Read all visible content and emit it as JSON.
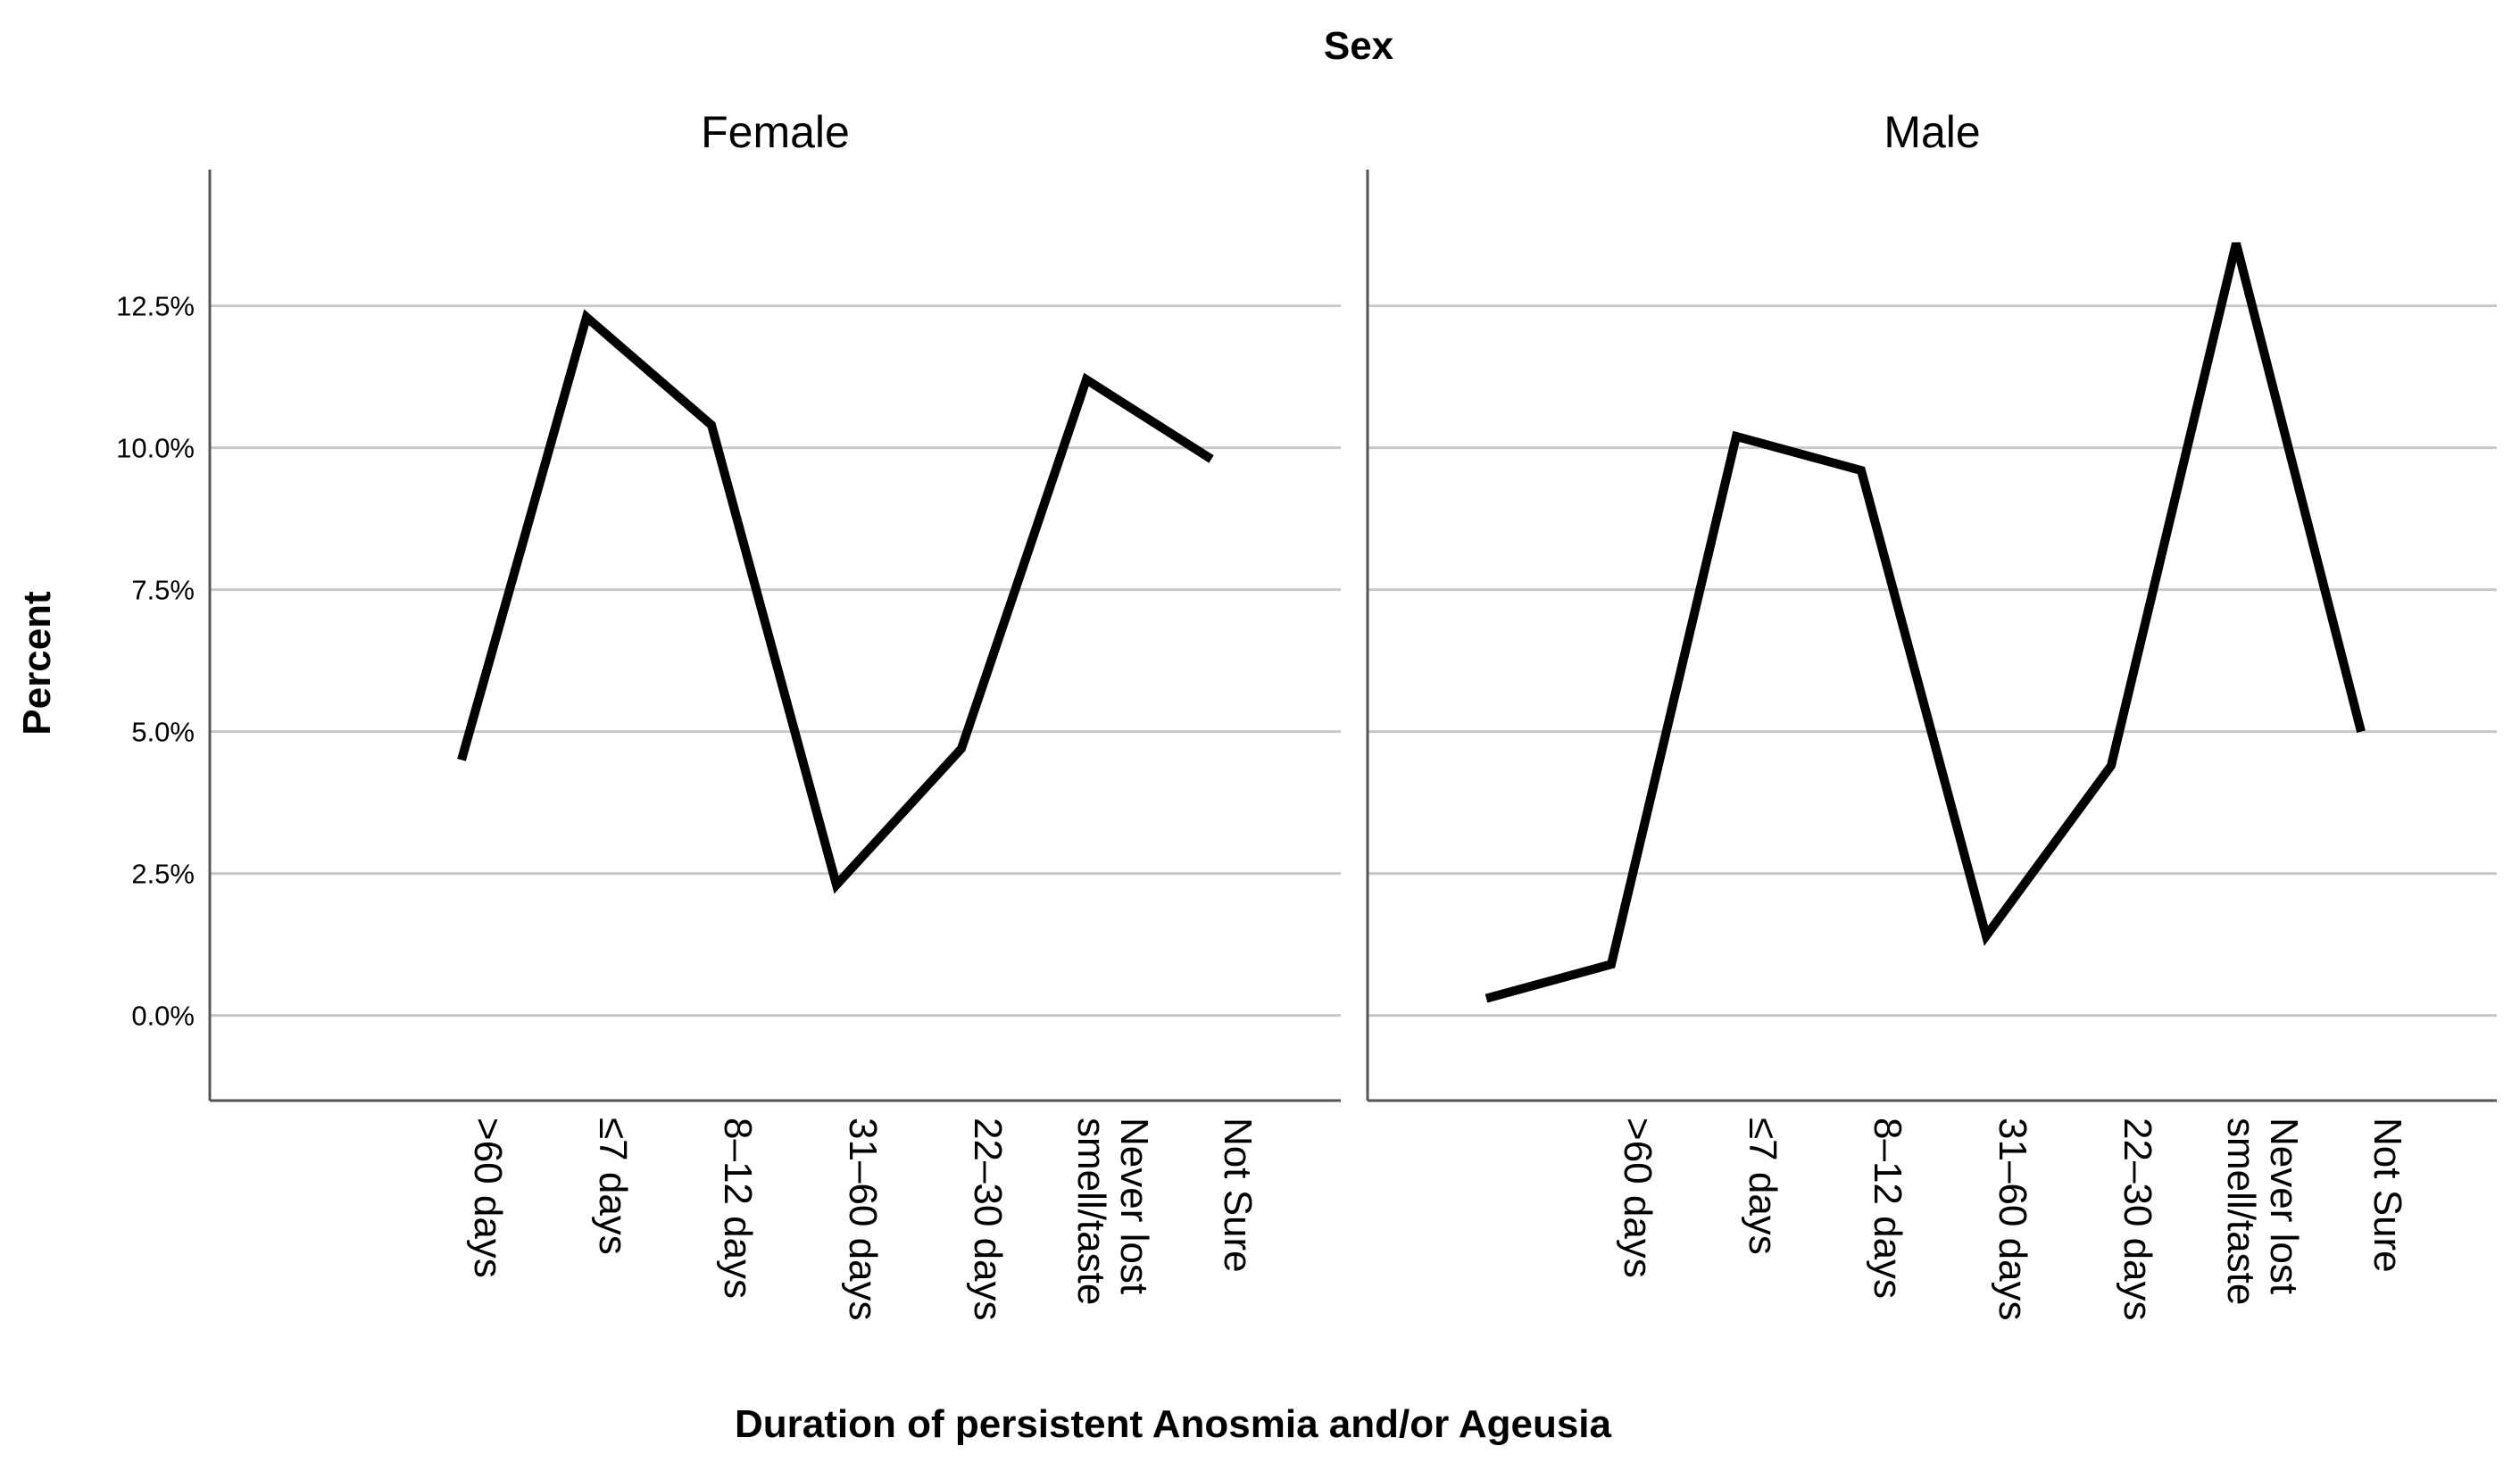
{
  "chart_data": {
    "type": "line",
    "strip_title": "Sex",
    "xlabel": "Duration of persistent Anosmia and/or Ageusia",
    "ylabel": "Percent",
    "ylim": [
      -1.5,
      14.9
    ],
    "yticks": [
      0,
      2.5,
      5,
      7.5,
      10,
      12.5
    ],
    "ytick_labels": [
      "0.0%",
      "2.5%",
      "5.0%",
      "7.5%",
      "10.0%",
      "12.5%"
    ],
    "grid": true,
    "series_color": "#000000",
    "panels": [
      {
        "name": "Female",
        "categories": [
          ">60 days",
          "≤7 days",
          "8–12 days",
          "31–60 days",
          "22–30 days",
          "Never lost smell/taste",
          "Not Sure"
        ],
        "category_lines": [
          [
            ">60 days"
          ],
          [
            "≤7 days"
          ],
          [
            "8–12 days"
          ],
          [
            "31–60 days"
          ],
          [
            "22–30 days"
          ],
          [
            "Never lost",
            "smell/taste"
          ],
          [
            "Not Sure"
          ]
        ],
        "values": [
          4.5,
          12.3,
          10.4,
          2.3,
          4.7,
          11.2,
          9.8
        ]
      },
      {
        "name": "Male",
        "categories": [
          "",
          ">60 days",
          "≤7 days",
          "8–12 days",
          "31–60 days",
          "22–30 days",
          "Never lost smell/taste",
          "Not Sure"
        ],
        "category_lines": [
          [
            ""
          ],
          [
            ">60 days"
          ],
          [
            "≤7 days"
          ],
          [
            "8–12 days"
          ],
          [
            "31–60 days"
          ],
          [
            "22–30 days"
          ],
          [
            "Never lost",
            "smell/taste"
          ],
          [
            "Not Sure"
          ]
        ],
        "values": [
          0.3,
          0.9,
          10.2,
          9.6,
          1.4,
          4.4,
          13.6,
          5.0
        ]
      }
    ]
  }
}
